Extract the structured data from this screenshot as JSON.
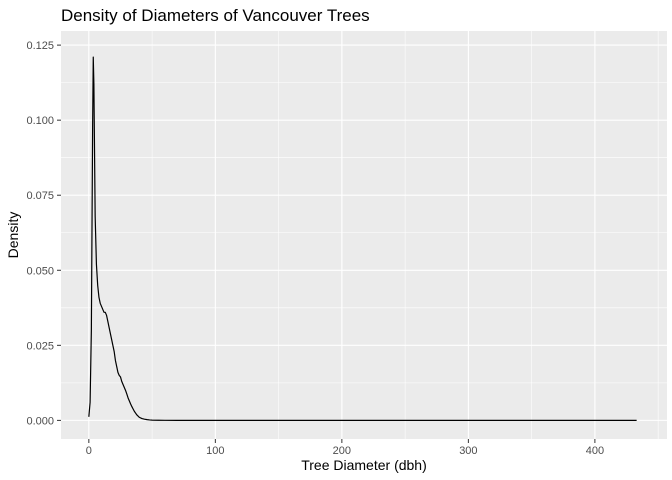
{
  "chart_data": {
    "type": "line",
    "title": "Density of Diameters of Vancouver Trees",
    "xlabel": "Tree Diameter (dbh)",
    "ylabel": "Density",
    "xlim": [
      -22,
      457
    ],
    "ylim": [
      -0.0062,
      0.1297
    ],
    "x_ticks": [
      0,
      100,
      200,
      300,
      400
    ],
    "x_tick_labels": [
      "0",
      "100",
      "200",
      "300",
      "400"
    ],
    "y_ticks": [
      0,
      0.025,
      0.05,
      0.075,
      0.1,
      0.125
    ],
    "y_tick_labels": [
      "0.000",
      "0.025",
      "0.050",
      "0.075",
      "0.100",
      "0.125"
    ],
    "grid": true,
    "panel_background": "#ebebeb",
    "grid_color": "#ffffff",
    "line_color": "#000000",
    "series": [
      {
        "x": [
          0,
          1,
          2,
          3,
          3.5,
          4,
          5,
          6,
          7,
          8,
          9,
          10,
          11,
          12,
          13,
          14,
          15,
          16,
          17,
          18,
          19,
          20,
          21,
          22,
          23,
          24,
          25,
          26,
          27,
          28,
          29,
          30,
          31,
          32,
          33,
          34,
          35,
          36,
          37,
          38,
          39,
          40,
          42,
          44,
          46,
          48,
          50,
          55,
          60,
          70,
          80,
          100,
          150,
          200,
          250,
          300,
          350,
          400,
          433
        ],
        "y": [
          0.0012,
          0.006,
          0.03,
          0.098,
          0.121,
          0.112,
          0.068,
          0.052,
          0.045,
          0.041,
          0.039,
          0.038,
          0.037,
          0.036,
          0.036,
          0.035,
          0.033,
          0.031,
          0.029,
          0.027,
          0.025,
          0.023,
          0.02,
          0.018,
          0.016,
          0.015,
          0.0145,
          0.013,
          0.012,
          0.011,
          0.01,
          0.0088,
          0.0075,
          0.0065,
          0.0055,
          0.0046,
          0.0038,
          0.003,
          0.0024,
          0.0018,
          0.0014,
          0.001,
          0.0006,
          0.0004,
          0.00025,
          0.00015,
          0.0001,
          5e-05,
          2e-05,
          1e-05,
          0,
          0,
          0,
          0,
          0,
          0,
          0,
          0,
          0
        ]
      }
    ]
  }
}
